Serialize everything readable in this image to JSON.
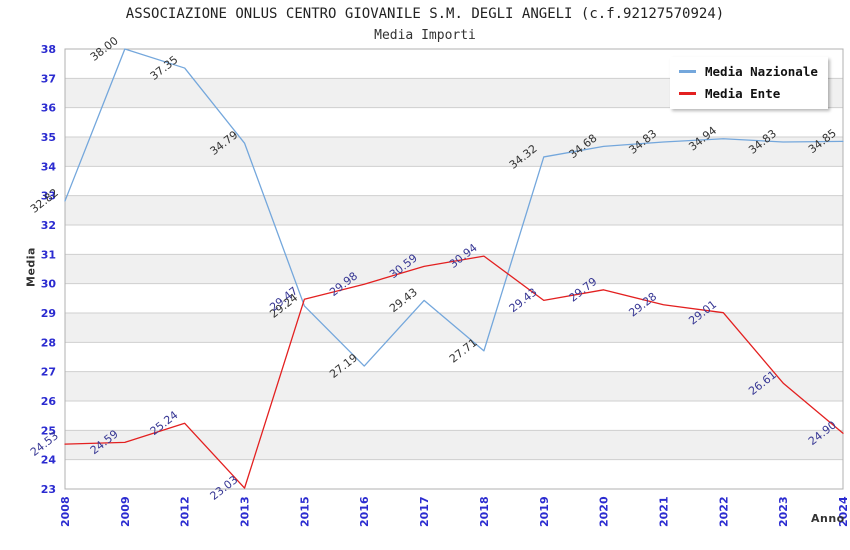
{
  "title": "ASSOCIAZIONE ONLUS CENTRO GIOVANILE S.M. DEGLI ANGELI (c.f.92127570924)",
  "subtitle": "Media Importi",
  "chart_data": {
    "type": "line",
    "title": "ASSOCIAZIONE ONLUS CENTRO GIOVANILE S.M. DEGLI ANGELI (c.f.92127570924)",
    "subtitle": "Media Importi",
    "xlabel": "Anno",
    "ylabel": "Media",
    "categories": [
      "2008",
      "2009",
      "2012",
      "2013",
      "2015",
      "2016",
      "2017",
      "2018",
      "2019",
      "2020",
      "2021",
      "2022",
      "2023",
      "2024"
    ],
    "series": [
      {
        "name": "Media Nazionale",
        "color": "#74a7dc",
        "label_color": "#333333",
        "values": [
          32.82,
          38.0,
          37.35,
          34.79,
          29.24,
          27.19,
          29.43,
          27.71,
          34.32,
          34.68,
          34.83,
          34.94,
          34.83,
          34.85
        ]
      },
      {
        "name": "Media Ente",
        "color": "#e32020",
        "label_color": "#373794",
        "values": [
          24.53,
          24.59,
          25.24,
          23.03,
          29.47,
          29.98,
          30.59,
          30.94,
          29.43,
          29.79,
          29.28,
          29.01,
          26.61,
          24.9
        ]
      }
    ],
    "ylim": [
      23,
      38
    ],
    "ytick_step": 1,
    "grid": true,
    "bands": true,
    "legend_position": "top-right",
    "colors": {
      "tick_label": "#2b2bd0",
      "grid": "#cfcfcf",
      "band": "#f0f0f0",
      "border": "#b0b0b0",
      "text": "#333333"
    }
  }
}
